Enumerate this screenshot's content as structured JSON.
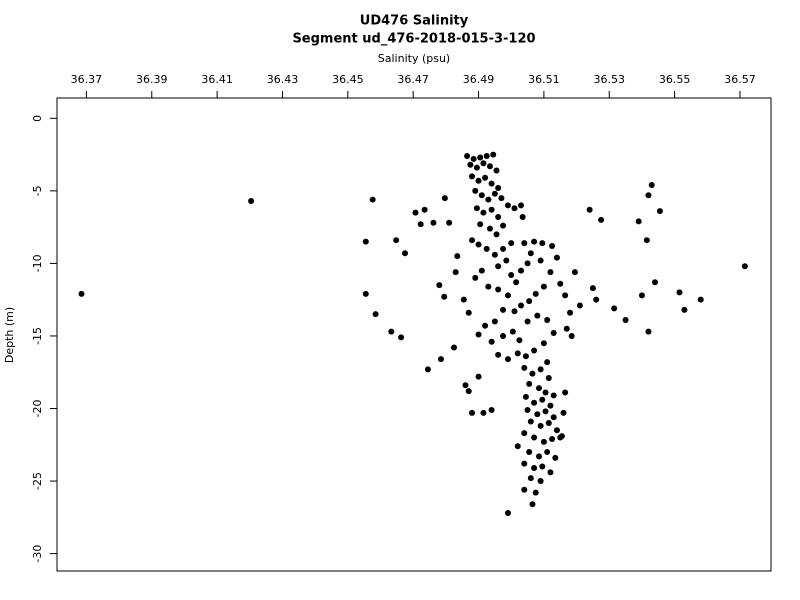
{
  "chart_data": {
    "type": "scatter",
    "title": "UD476 Salinity",
    "subtitle": "Segment ud_476-2018-015-3-120",
    "x_label": "Salinity (psu)",
    "y_label": "Depth (m)",
    "color": "#000000",
    "xlim": [
      36.361,
      36.5795
    ],
    "ylim": [
      -31.2,
      1.4
    ],
    "xticks": [
      36.37,
      36.39,
      36.41,
      36.43,
      36.45,
      36.47,
      36.49,
      36.51,
      36.53,
      36.55,
      36.57
    ],
    "yticks": [
      0,
      -5,
      -10,
      -15,
      -20,
      -25,
      -30
    ],
    "x": [
      36.3685,
      36.4204,
      36.4576,
      36.4555,
      36.4555,
      36.4585,
      36.4633,
      36.4648,
      36.4663,
      36.4675,
      36.4707,
      36.4723,
      36.4735,
      36.4745,
      36.4762,
      36.4785,
      36.4797,
      36.481,
      36.4795,
      36.478,
      36.4825,
      36.4835,
      36.486,
      36.487,
      36.488,
      36.4915,
      36.494,
      36.49,
      36.487,
      36.4855,
      36.4865,
      36.4885,
      36.4905,
      36.4925,
      36.4945,
      36.4875,
      36.4895,
      36.4915,
      36.4935,
      36.4955,
      36.488,
      36.49,
      36.492,
      36.494,
      36.496,
      36.489,
      36.491,
      36.493,
      36.495,
      36.497,
      36.4895,
      36.4915,
      36.494,
      36.496,
      36.499,
      36.501,
      36.503,
      36.5035,
      36.4905,
      36.4935,
      36.4955,
      36.4975,
      36.488,
      36.49,
      36.4925,
      36.495,
      36.4975,
      36.5,
      36.4985,
      36.496,
      36.491,
      36.489,
      36.493,
      36.496,
      36.5,
      36.5015,
      36.503,
      36.505,
      36.506,
      36.504,
      36.507,
      36.5095,
      36.5125,
      36.509,
      36.512,
      36.51,
      36.5075,
      36.5055,
      36.503,
      36.501,
      36.499,
      36.4975,
      36.495,
      36.492,
      36.49,
      36.494,
      36.4975,
      36.5005,
      36.5025,
      36.505,
      36.508,
      36.511,
      36.513,
      36.51,
      36.507,
      36.5045,
      36.502,
      36.499,
      36.496,
      36.511,
      36.504,
      36.5065,
      36.509,
      36.5115,
      36.5055,
      36.5085,
      36.5105,
      36.513,
      36.5045,
      36.507,
      36.5095,
      36.512,
      36.505,
      36.508,
      36.5105,
      36.513,
      36.506,
      36.509,
      36.5115,
      36.514,
      36.504,
      36.507,
      36.51,
      36.5125,
      36.515,
      36.502,
      36.5055,
      36.5085,
      36.511,
      36.5135,
      36.504,
      36.507,
      36.5095,
      36.512,
      36.506,
      36.509,
      36.504,
      36.5075,
      36.5065,
      36.499,
      36.524,
      36.5275,
      36.5315,
      36.535,
      36.539,
      36.54,
      36.5415,
      36.542,
      36.542,
      36.543,
      36.544,
      36.5455,
      36.5515,
      36.553,
      36.558,
      36.5715,
      36.525,
      36.526,
      36.521,
      36.5195,
      36.518,
      36.517,
      36.5185,
      36.5165,
      36.516,
      36.5155,
      36.515,
      36.514,
      36.5165,
      36.483
    ],
    "values": [
      -12.1,
      -5.7,
      -5.6,
      -8.5,
      -12.1,
      -13.5,
      -14.7,
      -8.4,
      -15.1,
      -9.3,
      -6.5,
      -7.3,
      -6.3,
      -17.3,
      -7.2,
      -16.6,
      -5.5,
      -7.2,
      -12.3,
      -11.5,
      -15.8,
      -9.5,
      -18.4,
      -18.8,
      -20.3,
      -20.3,
      -20.1,
      -17.8,
      -13.4,
      -12.5,
      -2.6,
      -2.8,
      -2.7,
      -2.6,
      -2.5,
      -3.2,
      -3.4,
      -3.1,
      -3.3,
      -3.6,
      -4.0,
      -4.3,
      -4.1,
      -4.5,
      -4.8,
      -5.0,
      -5.3,
      -5.6,
      -5.2,
      -5.5,
      -6.2,
      -6.5,
      -6.3,
      -6.8,
      -6.0,
      -6.2,
      -6.0,
      -6.8,
      -7.3,
      -7.6,
      -8.0,
      -7.4,
      -8.4,
      -8.7,
      -9.0,
      -9.4,
      -9.0,
      -8.6,
      -9.8,
      -10.2,
      -10.5,
      -11.0,
      -11.6,
      -11.8,
      -10.8,
      -11.3,
      -10.5,
      -10.0,
      -9.3,
      -8.6,
      -8.5,
      -8.6,
      -8.8,
      -9.8,
      -10.6,
      -11.6,
      -12.1,
      -12.6,
      -12.9,
      -13.3,
      -12.2,
      -13.2,
      -14.0,
      -14.3,
      -14.9,
      -15.4,
      -15.0,
      -14.7,
      -15.3,
      -14.0,
      -13.6,
      -13.9,
      -14.8,
      -15.5,
      -16.0,
      -16.4,
      -16.2,
      -16.6,
      -16.3,
      -16.8,
      -17.2,
      -17.6,
      -17.3,
      -17.9,
      -18.3,
      -18.6,
      -18.9,
      -19.1,
      -19.2,
      -19.6,
      -19.4,
      -19.8,
      -20.1,
      -20.4,
      -20.2,
      -20.6,
      -20.9,
      -21.2,
      -21.0,
      -21.5,
      -21.7,
      -22.0,
      -22.3,
      -22.1,
      -22.0,
      -22.6,
      -23.0,
      -23.3,
      -23.0,
      -23.4,
      -23.8,
      -24.1,
      -24.0,
      -24.4,
      -24.8,
      -25.0,
      -25.6,
      -25.8,
      -26.6,
      -27.2,
      -6.3,
      -7.0,
      -13.1,
      -13.9,
      -7.1,
      -12.2,
      -8.4,
      -14.7,
      -5.3,
      -4.6,
      -11.3,
      -6.4,
      -12.0,
      -13.2,
      -12.5,
      -10.2,
      -11.7,
      -12.5,
      -12.9,
      -10.6,
      -13.4,
      -14.5,
      -15.0,
      -18.9,
      -20.3,
      -21.9,
      -11.4,
      -9.6,
      -12.2,
      -10.6
    ]
  }
}
